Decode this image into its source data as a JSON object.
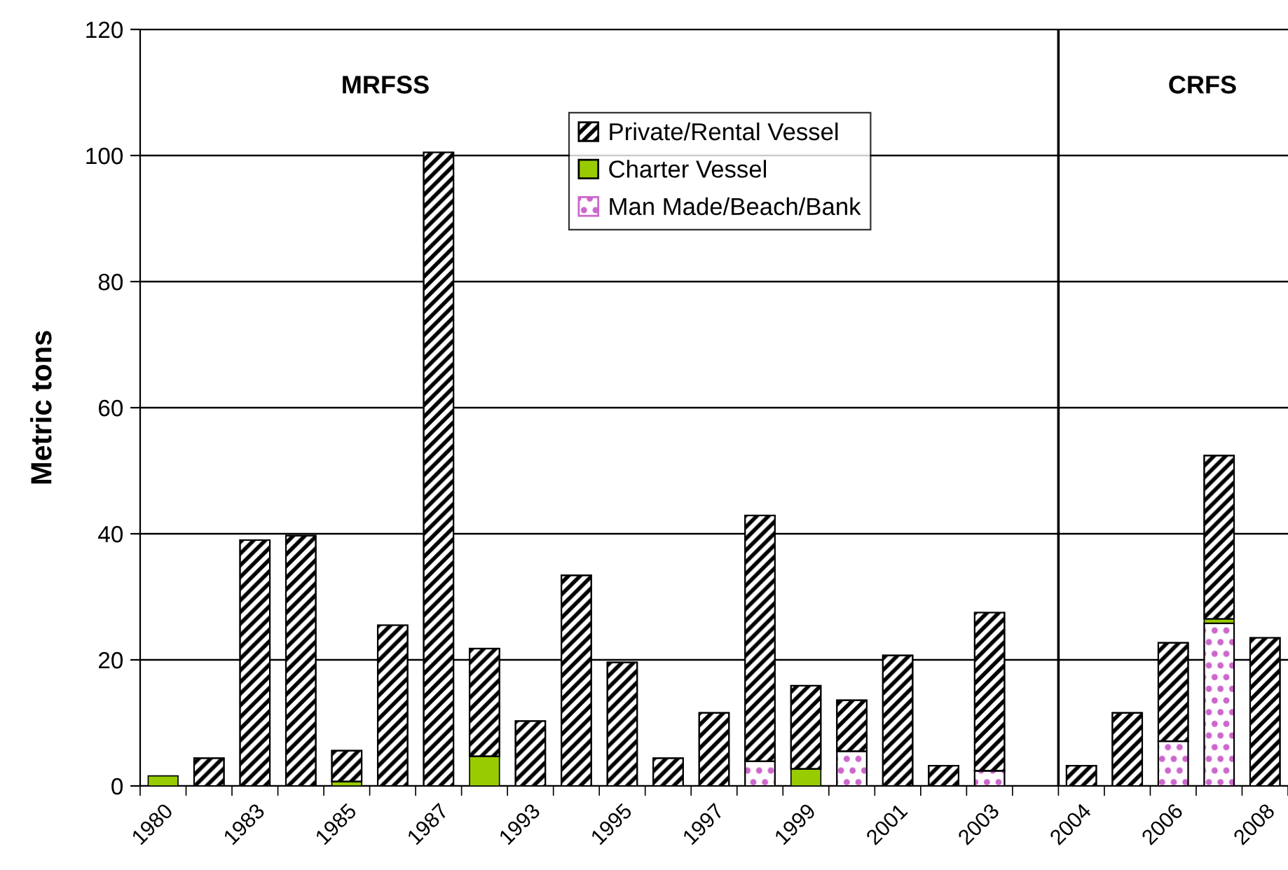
{
  "chart_data": {
    "type": "bar",
    "stacked": true,
    "ylabel": "Metric tons",
    "categories": [
      "1980",
      null,
      "1983",
      null,
      "1985",
      null,
      "1987",
      null,
      "1993",
      null,
      "1995",
      null,
      "1997",
      null,
      "1999",
      null,
      "2001",
      null,
      "2003",
      null,
      "2004",
      null,
      "2006",
      null,
      "2008"
    ],
    "series": [
      {
        "name": "Man Made/Beach/Bank",
        "color": "#cc66cc",
        "values": [
          null,
          null,
          null,
          null,
          null,
          null,
          null,
          null,
          null,
          null,
          null,
          null,
          null,
          3.9,
          null,
          5.5,
          null,
          null,
          2.4,
          null,
          null,
          null,
          7.1,
          25.8,
          null
        ]
      },
      {
        "name": "Charter Vessel",
        "color": "#99cc00",
        "values": [
          1.6,
          null,
          null,
          null,
          0.7,
          null,
          null,
          4.7,
          null,
          null,
          null,
          null,
          null,
          null,
          2.7,
          null,
          null,
          null,
          null,
          null,
          null,
          null,
          null,
          0.7,
          null
        ]
      },
      {
        "name": "Private/Rental Vessel",
        "color": "#000000",
        "values": [
          null,
          4.4,
          39.0,
          39.7,
          4.9,
          25.5,
          100.5,
          17.1,
          10.3,
          33.4,
          19.6,
          4.4,
          11.6,
          39.0,
          13.2,
          8.1,
          20.7,
          3.2,
          25.1,
          null,
          3.2,
          11.6,
          15.6,
          25.9,
          23.5
        ]
      }
    ],
    "ylim": [
      0,
      120
    ],
    "yticks": [
      0,
      20,
      40,
      60,
      80,
      100,
      120
    ],
    "grid": "y",
    "legend": "top",
    "ref_lines": [
      {
        "axis": "x",
        "value": "2004"
      }
    ],
    "annotations": [
      "MRFSS",
      "CRFS"
    ]
  }
}
